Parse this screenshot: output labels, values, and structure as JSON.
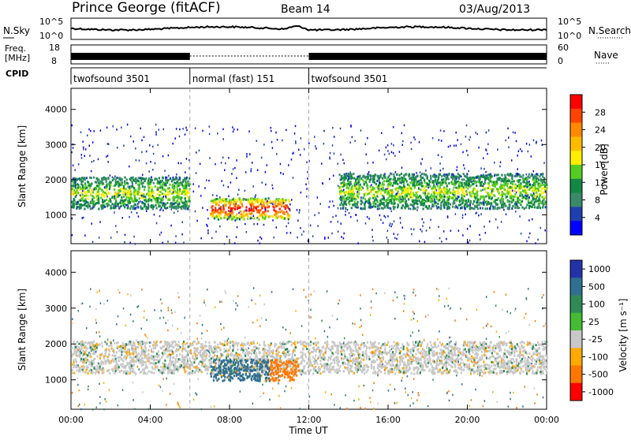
{
  "header": {
    "station": "Prince George (fitACF)",
    "beam": "Beam 14",
    "date": "03/Aug/2013"
  },
  "noise_panel": {
    "left_label": "N.Sky",
    "right_label": "N.Search",
    "left_ticks": [
      "10^5",
      "10^0"
    ],
    "right_ticks": [
      "10^5",
      "10^0"
    ]
  },
  "freq_panel": {
    "left_label_1": "Freq.",
    "left_label_2": "[MHz]",
    "left_ticks": [
      "18",
      "8"
    ],
    "right_ticks": [
      "60",
      "0"
    ],
    "right_label": "Nave"
  },
  "cpid": {
    "label": "CPID",
    "segments": [
      {
        "name": "twofsound 3501",
        "start_h": 0,
        "end_h": 6
      },
      {
        "name": "normal (fast) 151",
        "start_h": 6,
        "end_h": 12
      },
      {
        "name": "twofsound 3501",
        "start_h": 12,
        "end_h": 24
      }
    ]
  },
  "power_colorbar": {
    "label": "Power [dB]",
    "ticks": [
      "28",
      "24",
      "20",
      "16",
      "12",
      "8",
      "4"
    ],
    "colors": [
      "#ff0000",
      "#ff4400",
      "#ff8800",
      "#ffbb00",
      "#ffee00",
      "#55cc22",
      "#118844",
      "#3a8a6a",
      "#1f3fb0",
      "#0000ff"
    ]
  },
  "velocity_colorbar": {
    "label": "Velocity [m s⁻¹]",
    "ticks": [
      "1000",
      "500",
      "100",
      "25",
      "-25",
      "-100",
      "-500",
      "-1000"
    ],
    "colors": [
      "#2233aa",
      "#2f6f8f",
      "#2e8b57",
      "#44bb33",
      "#c8c8c8",
      "#ffaa00",
      "#ff7700",
      "#ff0000"
    ]
  },
  "xaxis": {
    "label": "Time UT",
    "ticks": [
      "00:00",
      "04:00",
      "08:00",
      "12:00",
      "16:00",
      "20:00",
      "00:00"
    ]
  },
  "chart_data": [
    {
      "type": "heatmap",
      "title": "Power",
      "ylabel": "Slant Range [km]",
      "xlabel": "Time UT",
      "ylim": [
        180,
        4600
      ],
      "xlim_hours": [
        0,
        24
      ],
      "yticks": [
        1000,
        2000,
        3000,
        4000
      ],
      "colorbar_label": "Power [dB]",
      "colorbar_range": [
        0,
        30
      ],
      "features": [
        {
          "desc": "band",
          "t0": 0,
          "t1": 6,
          "r0": 1200,
          "r1": 2100,
          "peak_db": 16
        },
        {
          "desc": "strong echo",
          "t0": 7,
          "t1": 11,
          "r0": 900,
          "r1": 1500,
          "peak_db": 30
        },
        {
          "desc": "band",
          "t0": 13.5,
          "t1": 24,
          "r0": 1200,
          "r1": 2200,
          "peak_db": 16
        }
      ]
    },
    {
      "type": "heatmap",
      "title": "Velocity",
      "ylabel": "Slant Range [km]",
      "xlabel": "Time UT",
      "ylim": [
        180,
        4600
      ],
      "xlim_hours": [
        0,
        24
      ],
      "yticks": [
        1000,
        2000,
        3000,
        4000
      ],
      "colorbar_label": "Velocity [m s⁻¹]",
      "colorbar_range": [
        -1000,
        1000
      ],
      "features": [
        {
          "desc": "ground scatter band",
          "t0": 0,
          "t1": 24,
          "r0": 1200,
          "r1": 2100,
          "v": 0
        },
        {
          "desc": "positive velocity patch",
          "t0": 7,
          "t1": 10,
          "r0": 1000,
          "r1": 1600,
          "v": 200
        },
        {
          "desc": "negative velocity patch",
          "t0": 10,
          "t1": 11.5,
          "r0": 1000,
          "r1": 1600,
          "v": -200
        }
      ]
    }
  ]
}
